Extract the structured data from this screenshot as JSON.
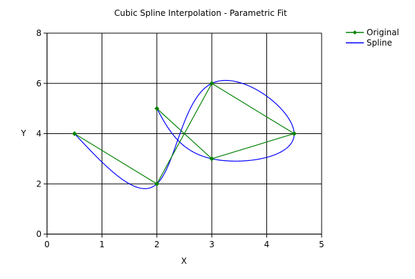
{
  "chart_data": {
    "type": "line",
    "title": "Cubic Spline Interpolation - Parametric Fit",
    "xlabel": "X",
    "ylabel": "Y",
    "xlim": [
      0,
      5
    ],
    "ylim": [
      0,
      8
    ],
    "xticks": [
      0,
      1,
      2,
      3,
      4,
      5
    ],
    "yticks": [
      0,
      2,
      4,
      6,
      8
    ],
    "xtick_labels": [
      "0",
      "1",
      "2",
      "3",
      "4",
      "5"
    ],
    "ytick_labels": [
      "0",
      "2",
      "4",
      "6",
      "8"
    ],
    "grid": true,
    "legend_position": "top-right",
    "series": [
      {
        "name": "Original",
        "color": "#008000",
        "marker": "diamond",
        "x": [
          0.5,
          2,
          3,
          4.5,
          3,
          2
        ],
        "y": [
          4,
          2,
          6,
          4,
          3,
          5
        ]
      },
      {
        "name": "Spline",
        "color": "#0000ff",
        "marker": "none",
        "x": [
          0.5,
          2,
          3,
          4.5,
          3,
          2
        ],
        "y": [
          4,
          2,
          6,
          4,
          3,
          5
        ]
      }
    ]
  }
}
